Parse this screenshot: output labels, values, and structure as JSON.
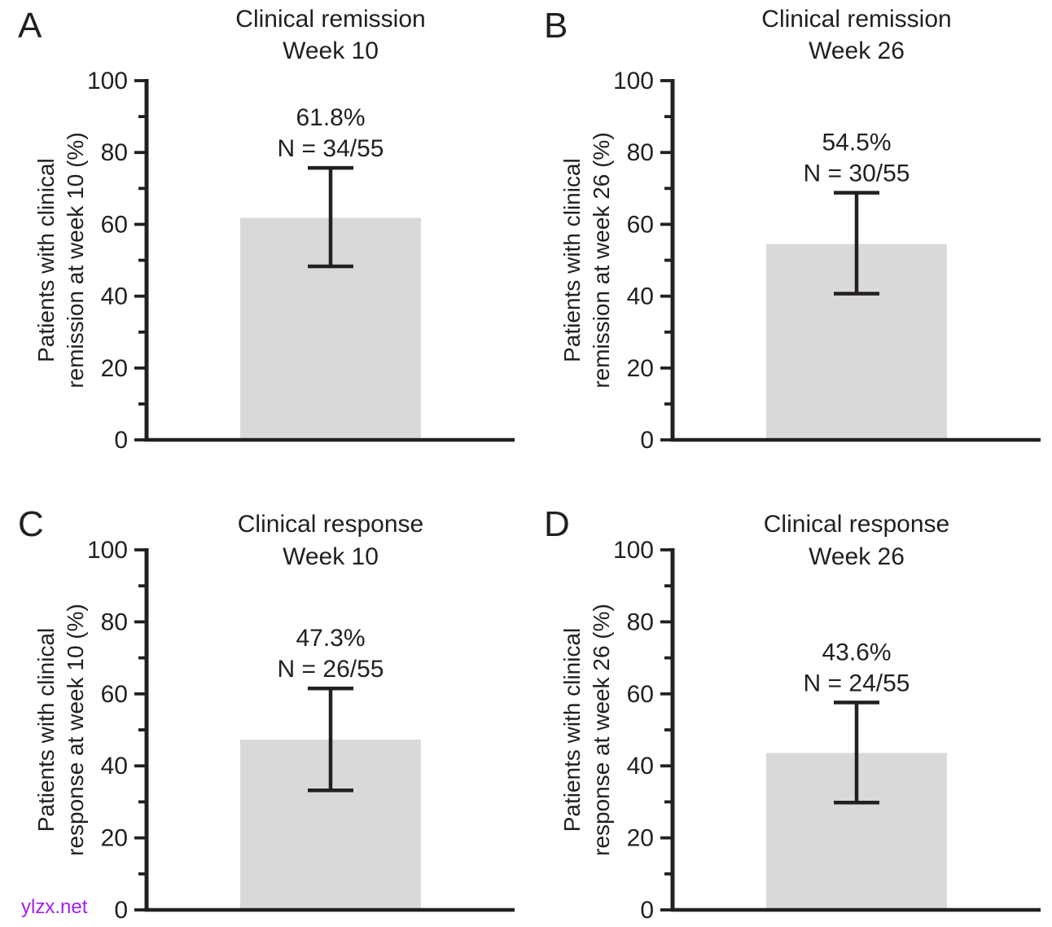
{
  "figure": {
    "description": "Four-panel bar chart figure of clinical remission and clinical response rates with 95% confidence interval error bars"
  },
  "watermark": {
    "text": "ylzx.net",
    "color": "#a020f0"
  },
  "colors": {
    "bar_fill": "#d9d9db",
    "axis": "#231f20",
    "text": "#231f20",
    "background": "#ffffff"
  },
  "chart_data": [
    {
      "type": "bar",
      "panel_letter": "A",
      "title": "Clinical remission",
      "subtitle": "Week 10",
      "ylabel_line1": "Patients with clinical",
      "ylabel_line2": "remission at week 10 (%)",
      "value": 61.8,
      "value_label": "61.8%",
      "n_label": "N = 34/55",
      "ci_low": 48.3,
      "ci_high": 75.7,
      "ylim": [
        0,
        100
      ],
      "yticks_major": [
        0,
        20,
        40,
        60,
        80,
        100
      ],
      "yticks_minor": [
        10,
        30,
        50,
        70,
        90
      ]
    },
    {
      "type": "bar",
      "panel_letter": "B",
      "title": "Clinical remission",
      "subtitle": "Week 26",
      "ylabel_line1": "Patients with clinical",
      "ylabel_line2": "remission at week 26 (%)",
      "value": 54.5,
      "value_label": "54.5%",
      "n_label": "N = 30/55",
      "ci_low": 40.7,
      "ci_high": 68.8,
      "ylim": [
        0,
        100
      ],
      "yticks_major": [
        0,
        20,
        40,
        60,
        80,
        100
      ],
      "yticks_minor": [
        10,
        30,
        50,
        70,
        90
      ]
    },
    {
      "type": "bar",
      "panel_letter": "C",
      "title": "Clinical response",
      "subtitle": "Week 10",
      "ylabel_line1": "Patients with clinical",
      "ylabel_line2": "response at week 10 (%)",
      "value": 47.3,
      "value_label": "47.3%",
      "n_label": "N = 26/55",
      "ci_low": 33.2,
      "ci_high": 61.5,
      "ylim": [
        0,
        100
      ],
      "yticks_major": [
        0,
        20,
        40,
        60,
        80,
        100
      ],
      "yticks_minor": [
        10,
        30,
        50,
        70,
        90
      ]
    },
    {
      "type": "bar",
      "panel_letter": "D",
      "title": "Clinical response",
      "subtitle": "Week 26",
      "ylabel_line1": "Patients with clinical",
      "ylabel_line2": "response at week 26 (%)",
      "value": 43.6,
      "value_label": "43.6%",
      "n_label": "N = 24/55",
      "ci_low": 29.8,
      "ci_high": 57.6,
      "ylim": [
        0,
        100
      ],
      "yticks_major": [
        0,
        20,
        40,
        60,
        80,
        100
      ],
      "yticks_minor": [
        10,
        30,
        50,
        70,
        90
      ]
    }
  ]
}
